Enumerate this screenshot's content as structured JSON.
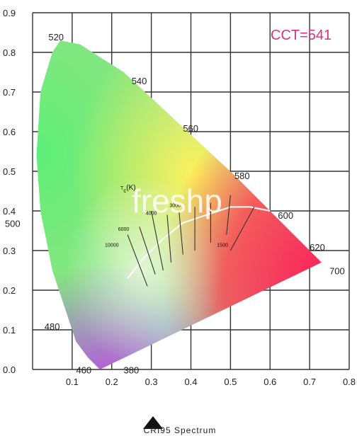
{
  "chart_data": {
    "type": "scatter",
    "title": "",
    "xlabel": "",
    "ylabel": "",
    "xlim": [
      0.0,
      0.8
    ],
    "ylim": [
      0.0,
      0.9
    ],
    "grid": true,
    "x_ticks": [
      "0.1",
      "0.2",
      "0.3",
      "0.4",
      "0.5",
      "0.6",
      "0.7",
      "0.8"
    ],
    "y_ticks": [
      "0.0",
      "0.1",
      "0.2",
      "0.3",
      "0.4",
      "0.5",
      "0.6",
      "0.7",
      "0.8",
      "0.9"
    ],
    "spectral_locus": [
      {
        "nm": "380",
        "x": 0.17,
        "y": 0.0
      },
      {
        "nm": "460",
        "x": 0.14,
        "y": 0.03
      },
      {
        "nm": "480",
        "x": 0.09,
        "y": 0.13
      },
      {
        "nm": "500",
        "x": 0.01,
        "y": 0.54
      },
      {
        "nm": "520",
        "x": 0.07,
        "y": 0.83
      },
      {
        "nm": "540",
        "x": 0.23,
        "y": 0.75
      },
      {
        "nm": "560",
        "x": 0.37,
        "y": 0.62
      },
      {
        "nm": "580",
        "x": 0.51,
        "y": 0.49
      },
      {
        "nm": "600",
        "x": 0.62,
        "y": 0.38
      },
      {
        "nm": "620",
        "x": 0.69,
        "y": 0.31
      },
      {
        "nm": "700",
        "x": 0.73,
        "y": 0.27
      }
    ],
    "wavelength_labels": [
      "520",
      "540",
      "560",
      "580",
      "600",
      "620",
      "700",
      "500",
      "480",
      "460",
      "380"
    ],
    "planckian_locus": [
      [
        0.24,
        0.23
      ],
      [
        0.28,
        0.28
      ],
      [
        0.33,
        0.33
      ],
      [
        0.38,
        0.37
      ],
      [
        0.44,
        0.39
      ],
      [
        0.5,
        0.41
      ],
      [
        0.55,
        0.41
      ],
      [
        0.6,
        0.4
      ]
    ],
    "isotherm_labels": [
      "10000",
      "6000",
      "4000",
      "3000",
      "1500"
    ],
    "temperature_label": "T",
    "temperature_sub": "c",
    "temperature_unit": "(K)",
    "annotation": "CCT=541",
    "annotation_color": "#d8347d"
  },
  "watermark": "freshp",
  "caption": {
    "label": "CRI95  Spectrum",
    "marker": "triangle-up-icon"
  },
  "colors": {
    "grid": "#333333",
    "locus": "#ffffff"
  }
}
